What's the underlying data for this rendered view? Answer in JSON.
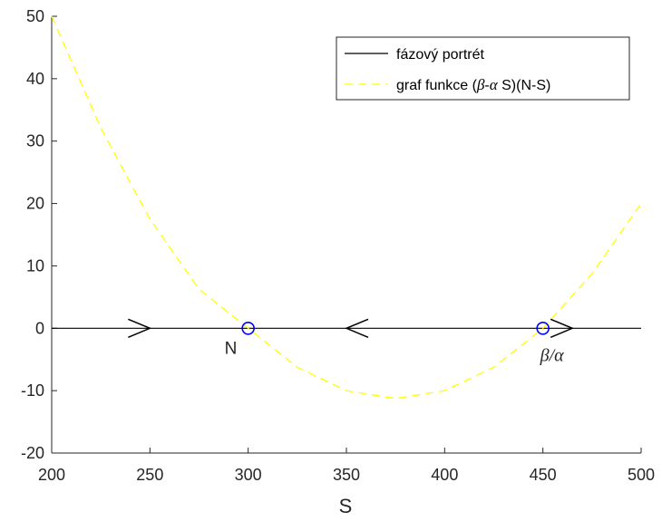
{
  "chart_data": {
    "type": "line",
    "xlabel": "S",
    "ylabel": "",
    "xlim": [
      200,
      500
    ],
    "ylim": [
      -20,
      50
    ],
    "xticks": [
      200,
      250,
      300,
      350,
      400,
      450,
      500
    ],
    "yticks": [
      -20,
      -10,
      0,
      10,
      20,
      30,
      40,
      50
    ],
    "grid": false,
    "legend_position": "top-right",
    "series": [
      {
        "name": "fázový portrét",
        "style": "solid",
        "color": "#000000",
        "x": [
          200,
          500
        ],
        "y": [
          0,
          0
        ]
      },
      {
        "name": "graf funkce (β-α S)(N-S)",
        "style": "dashed",
        "color": "#ffff00",
        "x": [
          200,
          225,
          250,
          275,
          300,
          325,
          350,
          375,
          400,
          425,
          450,
          475,
          500
        ],
        "y": [
          50,
          32.08,
          17.5,
          6.25,
          0,
          -6.25,
          -10,
          -11.25,
          -10,
          -6.25,
          0,
          8.75,
          20
        ]
      }
    ],
    "equilibria": [
      {
        "x": 300,
        "y": 0,
        "label": "N",
        "marker_color": "#0000ff"
      },
      {
        "x": 450,
        "y": 0,
        "label": "β/α",
        "marker_color": "#0000ff"
      }
    ],
    "arrows": [
      {
        "x": 250,
        "direction": "right"
      },
      {
        "x": 350,
        "direction": "left"
      },
      {
        "x": 465,
        "direction": "right"
      }
    ],
    "legend": {
      "solid_label": "fázový portrét",
      "dashed_label_prefix": "graf funkce (",
      "dashed_label_beta": "β",
      "dashed_label_dash": "-",
      "dashed_label_alpha": "α",
      "dashed_label_suffix": " S)(N-S)"
    }
  }
}
